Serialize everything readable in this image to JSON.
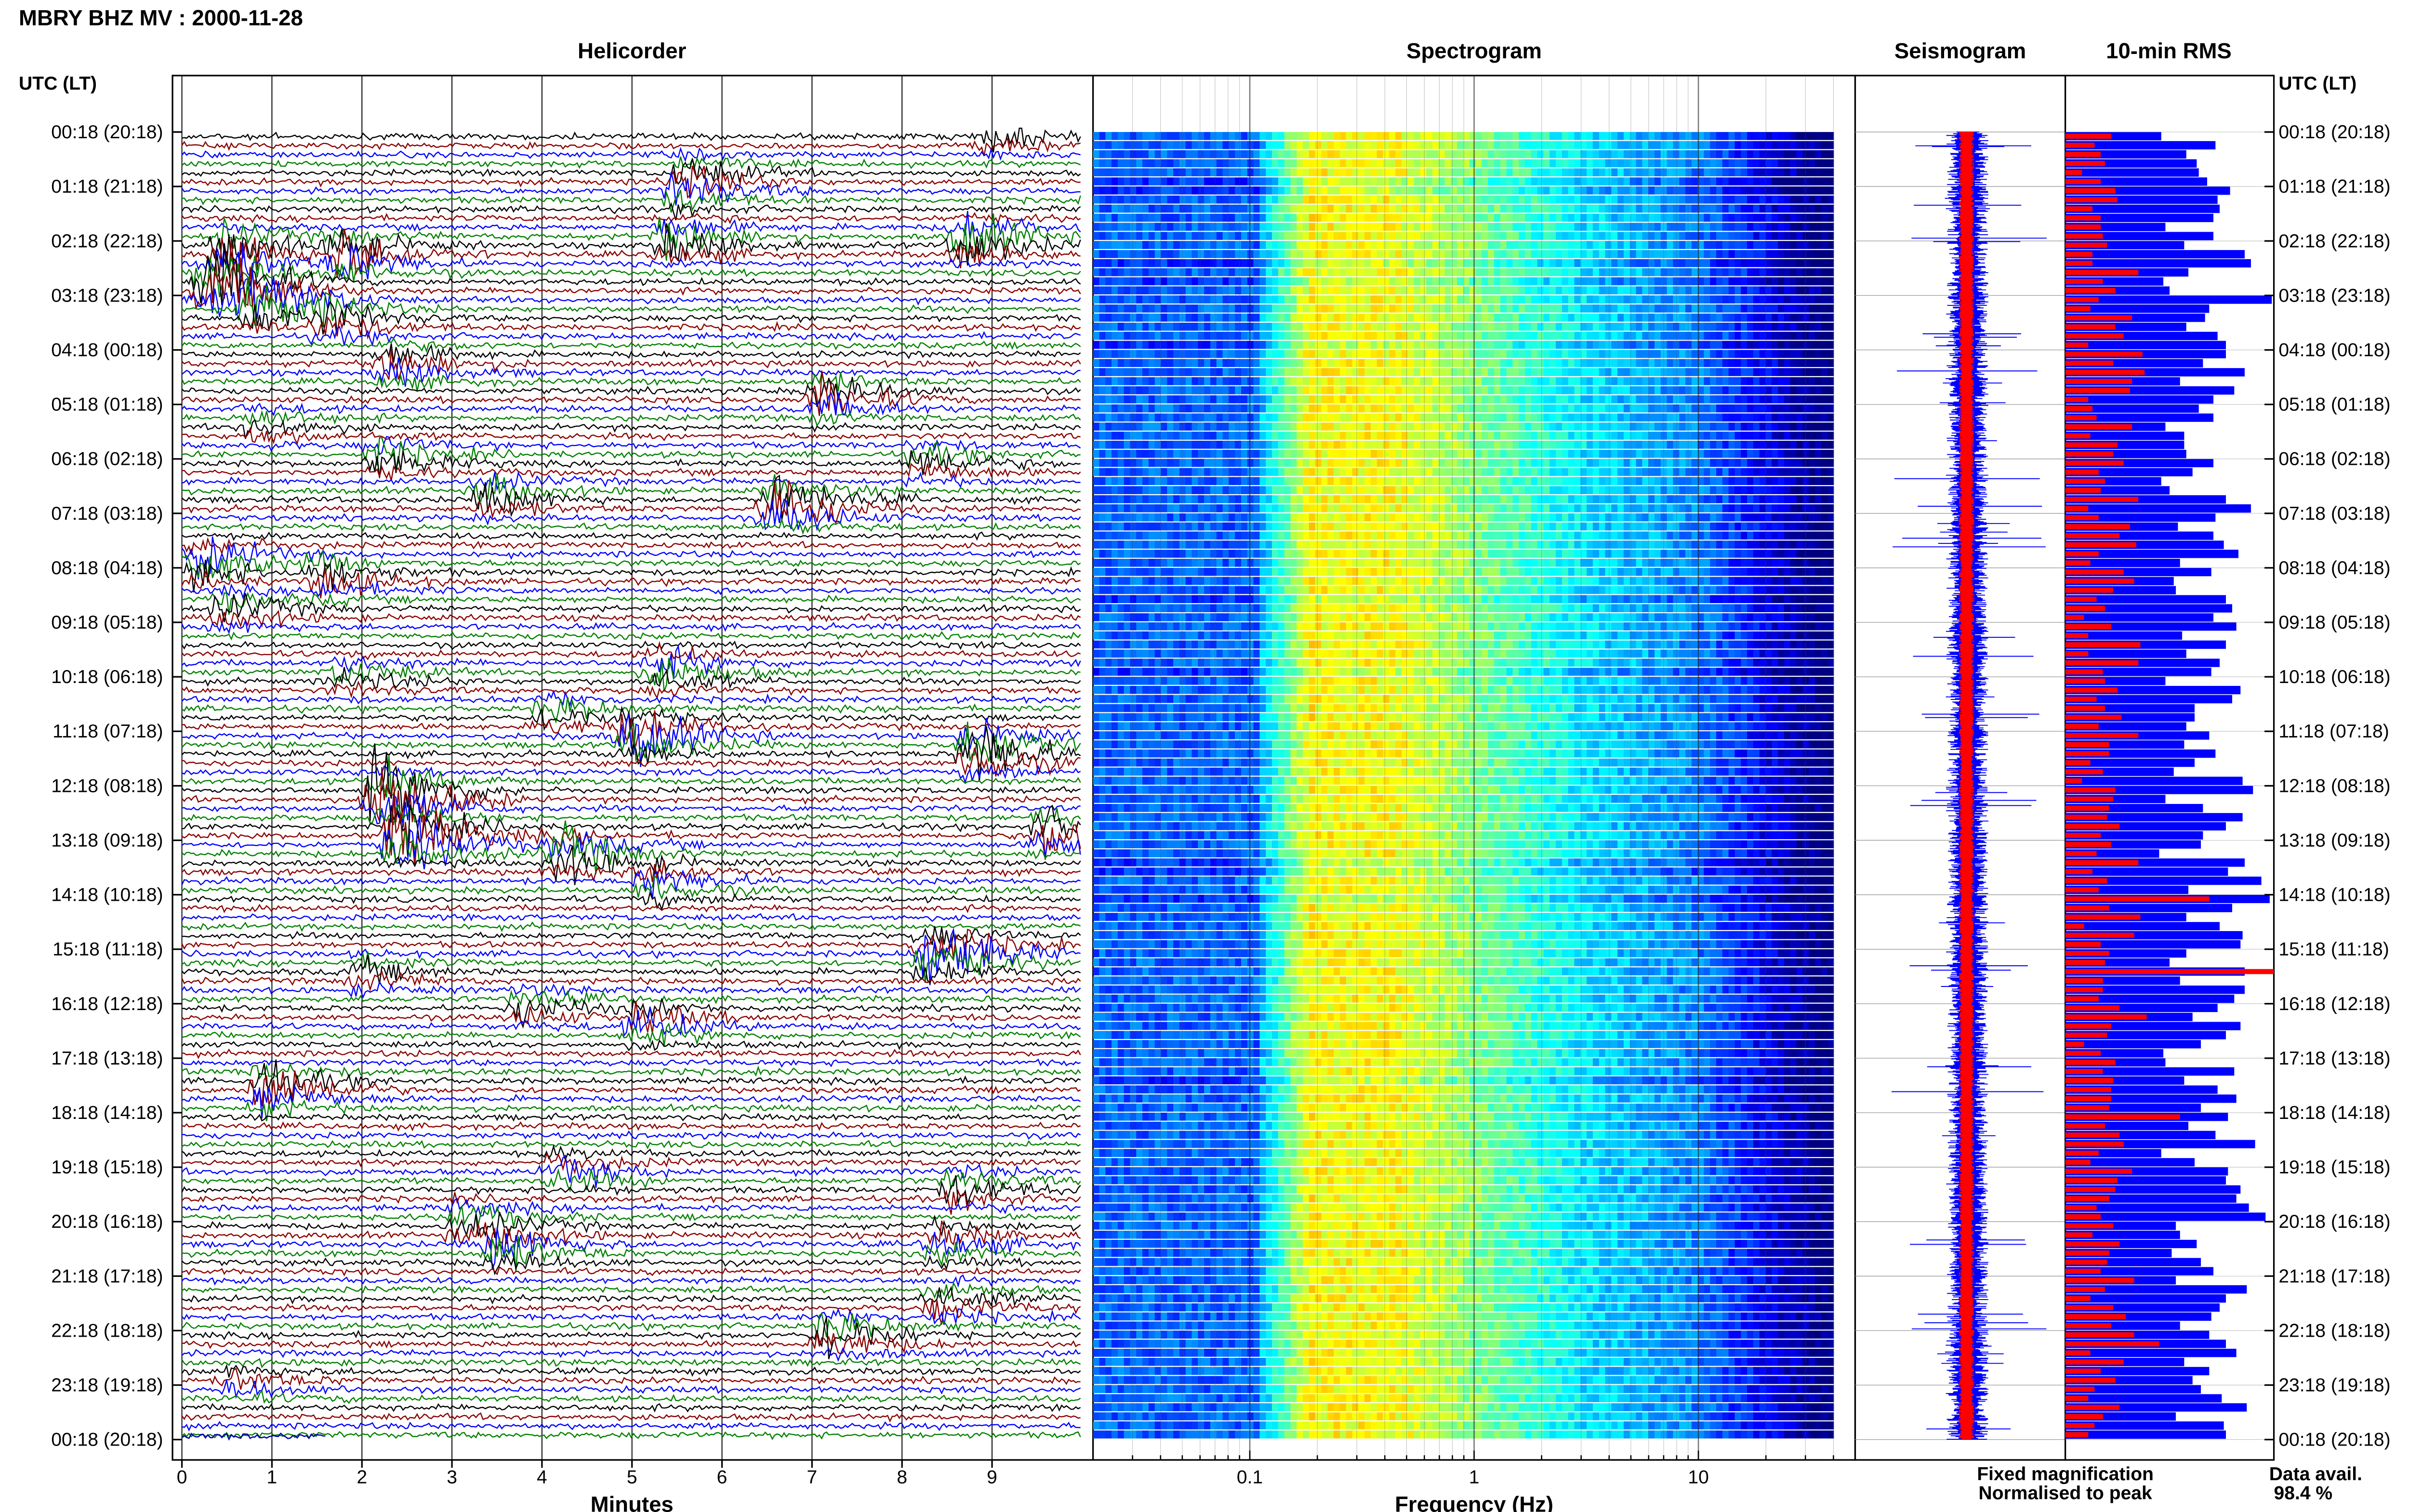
{
  "header": {
    "station_title": "MBRY BHZ MV : 2000-11-28"
  },
  "panels": {
    "helicorder": "Helicorder",
    "spectrogram": "Spectrogram",
    "seismogram": "Seismogram",
    "rms": "10-min RMS"
  },
  "axis_labels": {
    "left_time": "UTC (LT)",
    "right_time": "UTC (LT)",
    "helicorder_x": "Minutes",
    "spectrogram_x": "Frequency (Hz)"
  },
  "legend": {
    "fixed": "Fixed magnification",
    "normalised": "Normalised to peak",
    "fixed_color": "#0000ff",
    "normalised_color": "#ff0000"
  },
  "data_availability": {
    "label": "Data avail.",
    "value": "98.4 %"
  },
  "chart_data": [
    {
      "type": "line",
      "title": "Helicorder",
      "xlabel": "Minutes",
      "x_ticks": [
        "0",
        "1",
        "2",
        "3",
        "4",
        "5",
        "6",
        "7",
        "8",
        "9"
      ],
      "xlim": [
        0,
        10
      ],
      "trace_colors": [
        "#000000",
        "#8b0000",
        "#0000ff",
        "#008000"
      ],
      "rows_per_hour": 6,
      "y_tick_labels": [
        "00:18 (20:18)",
        "01:18 (21:18)",
        "02:18 (22:18)",
        "03:18 (23:18)",
        "04:18 (00:18)",
        "05:18 (01:18)",
        "06:18 (02:18)",
        "07:18 (03:18)",
        "08:18 (04:18)",
        "09:18 (05:18)",
        "10:18 (06:18)",
        "11:18 (07:18)",
        "12:18 (08:18)",
        "13:18 (09:18)",
        "14:18 (10:18)",
        "15:18 (11:18)",
        "16:18 (12:18)",
        "17:18 (13:18)",
        "18:18 (14:18)",
        "19:18 (15:18)",
        "20:18 (16:18)",
        "21:18 (17:18)",
        "22:18 (18:18)",
        "23:18 (19:18)",
        "00:18 (20:18)"
      ],
      "events": [
        {
          "hour": 0.0,
          "minute": 9.0,
          "amp": 0.6
        },
        {
          "hour": 0.7,
          "minute": 5.6,
          "amp": 0.6
        },
        {
          "hour": 1.0,
          "minute": 5.5,
          "amp": 0.8
        },
        {
          "hour": 1.9,
          "minute": 5.4,
          "amp": 1.2
        },
        {
          "hour": 1.9,
          "minute": 8.7,
          "amp": 1.4
        },
        {
          "hour": 2.1,
          "minute": 0.5,
          "amp": 1.6
        },
        {
          "hour": 2.2,
          "minute": 1.8,
          "amp": 1.4
        },
        {
          "hour": 2.7,
          "minute": 0.3,
          "amp": 2.2
        },
        {
          "hour": 3.1,
          "minute": 0.8,
          "amp": 1.6
        },
        {
          "hour": 3.4,
          "minute": 1.6,
          "amp": 0.8
        },
        {
          "hour": 4.2,
          "minute": 2.3,
          "amp": 1.0
        },
        {
          "hour": 4.8,
          "minute": 7.1,
          "amp": 1.2
        },
        {
          "hour": 5.3,
          "minute": 0.8,
          "amp": 0.7
        },
        {
          "hour": 5.9,
          "minute": 2.2,
          "amp": 0.8
        },
        {
          "hour": 6.0,
          "minute": 8.2,
          "amp": 0.8
        },
        {
          "hour": 6.6,
          "minute": 3.4,
          "amp": 0.9
        },
        {
          "hour": 6.8,
          "minute": 6.6,
          "amp": 1.7
        },
        {
          "hour": 7.8,
          "minute": 0.2,
          "amp": 1.4
        },
        {
          "hour": 8.1,
          "minute": 1.6,
          "amp": 0.9
        },
        {
          "hour": 8.7,
          "minute": 0.5,
          "amp": 0.8
        },
        {
          "hour": 9.8,
          "minute": 5.3,
          "amp": 1.0
        },
        {
          "hour": 9.9,
          "minute": 1.8,
          "amp": 0.7
        },
        {
          "hour": 10.6,
          "minute": 4.1,
          "amp": 0.8
        },
        {
          "hour": 11.0,
          "minute": 5.0,
          "amp": 1.5
        },
        {
          "hour": 11.3,
          "minute": 8.8,
          "amp": 2.0
        },
        {
          "hour": 12.1,
          "minute": 2.2,
          "amp": 2.6
        },
        {
          "hour": 12.9,
          "minute": 2.4,
          "amp": 2.4
        },
        {
          "hour": 12.8,
          "minute": 9.6,
          "amp": 1.2
        },
        {
          "hour": 13.2,
          "minute": 4.2,
          "amp": 1.4
        },
        {
          "hour": 13.7,
          "minute": 5.2,
          "amp": 0.9
        },
        {
          "hour": 15.0,
          "minute": 8.3,
          "amp": 2.0
        },
        {
          "hour": 15.4,
          "minute": 2.0,
          "amp": 0.6
        },
        {
          "hour": 16.0,
          "minute": 3.8,
          "amp": 0.7
        },
        {
          "hour": 16.3,
          "minute": 5.1,
          "amp": 0.9
        },
        {
          "hour": 17.5,
          "minute": 0.9,
          "amp": 1.5
        },
        {
          "hour": 19.0,
          "minute": 4.2,
          "amp": 0.8
        },
        {
          "hour": 19.3,
          "minute": 8.6,
          "amp": 0.8
        },
        {
          "hour": 19.9,
          "minute": 3.1,
          "amp": 0.8
        },
        {
          "hour": 20.4,
          "minute": 3.5,
          "amp": 1.2
        },
        {
          "hour": 20.3,
          "minute": 8.4,
          "amp": 0.8
        },
        {
          "hour": 21.4,
          "minute": 8.4,
          "amp": 0.8
        },
        {
          "hour": 22.0,
          "minute": 7.2,
          "amp": 1.2
        },
        {
          "hour": 22.9,
          "minute": 0.6,
          "amp": 0.6
        }
      ]
    },
    {
      "type": "heatmap",
      "title": "Spectrogram",
      "xlabel": "Frequency (Hz)",
      "x_scale": "log",
      "xlim": [
        0.02,
        50
      ],
      "x_tick_values": [
        0.1,
        1,
        10
      ],
      "x_tick_labels": [
        "0.1",
        "1",
        "10"
      ],
      "max_frequency": 40,
      "colormap": "jet"
    },
    {
      "type": "line",
      "title": "Seismogram",
      "series": [
        {
          "name": "Fixed magnification",
          "color": "#0000ff"
        },
        {
          "name": "Normalised to peak",
          "color": "#ff0000"
        }
      ]
    },
    {
      "type": "bar",
      "title": "10-min RMS",
      "series": [
        {
          "name": "Fixed magnification",
          "color": "#0000ff",
          "values": [
            0.46,
            0.72,
            0.58,
            0.63,
            0.64,
            0.68,
            0.79,
            0.73,
            0.74,
            0.71,
            0.48,
            0.71,
            0.57,
            0.86,
            0.89,
            0.59,
            0.47,
            0.5,
            0.99,
            0.69,
            0.67,
            0.58,
            0.73,
            0.77,
            0.77,
            0.66,
            0.86,
            0.55,
            0.81,
            0.71,
            0.64,
            0.71,
            0.48,
            0.57,
            0.57,
            0.58,
            0.71,
            0.61,
            0.46,
            0.5,
            0.77,
            0.89,
            0.72,
            0.54,
            0.71,
            0.76,
            0.83,
            0.55,
            0.7,
            0.52,
            0.53,
            0.77,
            0.8,
            0.71,
            0.82,
            0.56,
            0.77,
            0.58,
            0.74,
            0.7,
            0.48,
            0.84,
            0.8,
            0.62,
            0.62,
            0.58,
            0.69,
            0.57,
            0.72,
            0.62,
            0.52,
            0.85,
            0.9,
            0.48,
            0.66,
            0.85,
            0.77,
            0.66,
            0.65,
            0.45,
            0.86,
            0.78,
            0.94,
            0.59,
            0.98,
            0.8,
            0.58,
            0.74,
            0.85,
            0.84,
            0.58,
            0.5,
            0.86,
            0.55,
            0.86,
            0.81,
            0.73,
            0.61,
            0.84,
            0.77,
            0.65,
            0.47,
            0.48,
            0.81,
            0.57,
            0.73,
            0.82,
            0.65,
            0.78,
            0.59,
            0.72,
            0.91,
            0.46,
            0.62,
            0.78,
            0.77,
            0.84,
            0.82,
            0.88,
            0.96,
            0.53,
            0.55,
            0.63,
            0.51,
            0.65,
            0.71,
            0.53,
            0.87,
            0.77,
            0.74,
            0.7,
            0.55,
            0.69,
            0.77,
            0.82,
            0.57,
            0.69,
            0.61,
            0.65,
            0.75,
            0.87,
            0.53,
            0.76,
            0.77
          ]
        },
        {
          "name": "Normalised to peak",
          "color": "#ff0000",
          "values": [
            0.22,
            0.14,
            0.17,
            0.19,
            0.08,
            0.17,
            0.24,
            0.25,
            0.13,
            0.17,
            0.17,
            0.18,
            0.2,
            0.13,
            0.13,
            0.35,
            0.18,
            0.24,
            0.16,
            0.12,
            0.32,
            0.24,
            0.28,
            0.11,
            0.37,
            0.23,
            0.38,
            0.32,
            0.31,
            0.11,
            0.13,
            0.15,
            0.32,
            0.12,
            0.25,
            0.23,
            0.28,
            0.16,
            0.19,
            0.17,
            0.35,
            0.11,
            0.16,
            0.31,
            0.26,
            0.34,
            0.16,
            0.12,
            0.28,
            0.33,
            0.23,
            0.15,
            0.19,
            0.09,
            0.22,
            0.11,
            0.36,
            0.11,
            0.35,
            0.18,
            0.19,
            0.25,
            0.15,
            0.19,
            0.27,
            0.16,
            0.35,
            0.21,
            0.21,
            0.12,
            0.18,
            0.08,
            0.24,
            0.23,
            0.21,
            0.2,
            0.26,
            0.17,
            0.22,
            0.15,
            0.35,
            0.13,
            0.2,
            0.16,
            0.69,
            0.21,
            0.36,
            0.09,
            0.33,
            0.17,
            0.21,
            0.19,
            1.0,
            0.18,
            0.18,
            0.16,
            0.26,
            0.39,
            0.22,
            0.2,
            0.09,
            0.17,
            0.24,
            0.18,
            0.23,
            0.22,
            0.22,
            0.21,
            0.55,
            0.19,
            0.26,
            0.28,
            0.16,
            0.12,
            0.32,
            0.25,
            0.24,
            0.21,
            0.15,
            0.17,
            0.23,
            0.13,
            0.26,
            0.21,
            0.2,
            0.17,
            0.33,
            0.19,
            0.12,
            0.23,
            0.29,
            0.22,
            0.33,
            0.45,
            0.12,
            0.28,
            0.17,
            0.24,
            0.14,
            0.11,
            0.26,
            0.18,
            0.14,
            0.11
          ]
        }
      ]
    }
  ]
}
